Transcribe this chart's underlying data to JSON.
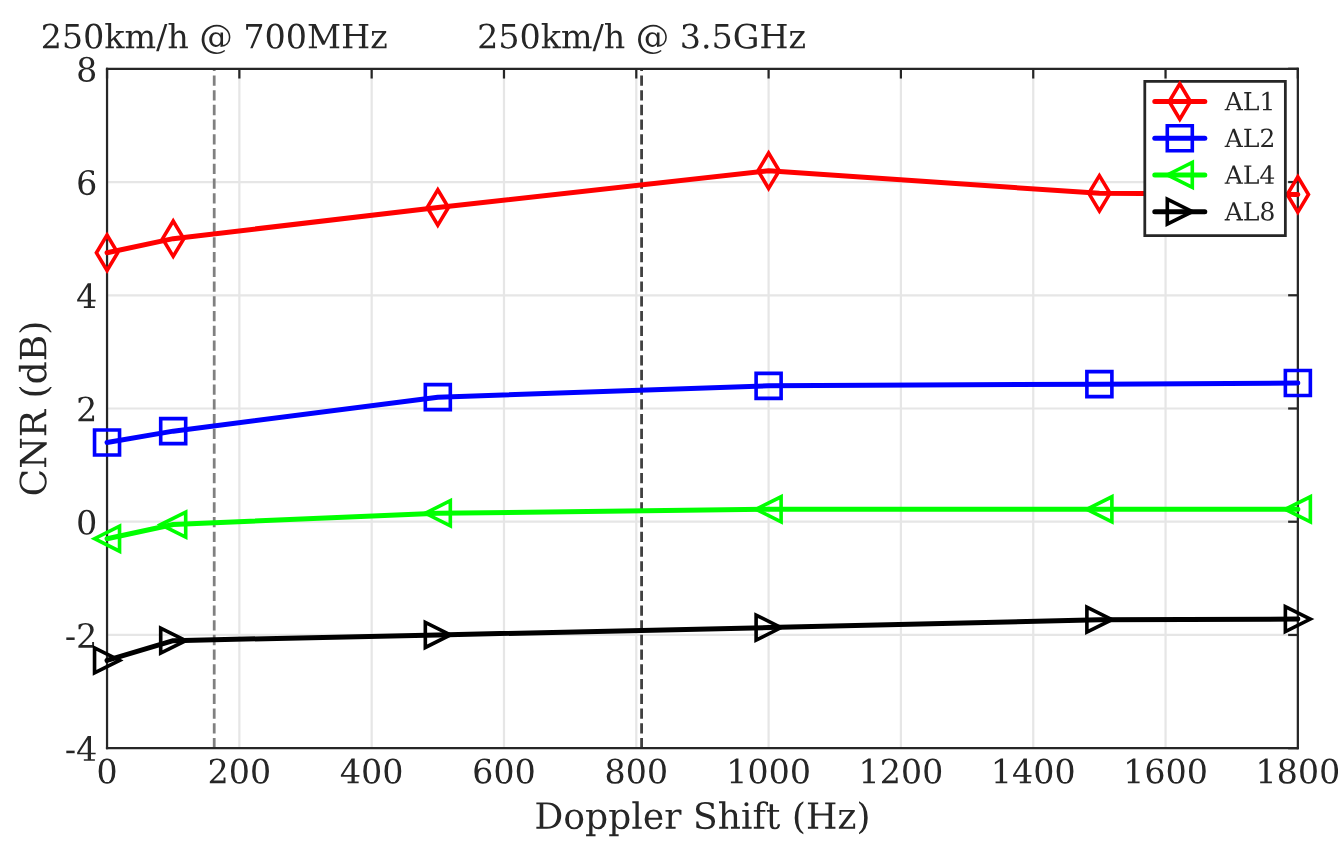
{
  "chart_data": {
    "type": "line",
    "xlabel": "Doppler Shift (Hz)",
    "ylabel": "CNR (dB)",
    "x": [
      0,
      100,
      500,
      1000,
      1500,
      1800
    ],
    "series": [
      {
        "name": "AL1",
        "color": "#ff0000",
        "marker": "diamond",
        "values": [
          4.75,
          5.0,
          5.55,
          6.2,
          5.8,
          5.78
        ]
      },
      {
        "name": "AL2",
        "color": "#0000ff",
        "marker": "square",
        "values": [
          1.4,
          1.6,
          2.2,
          2.4,
          2.43,
          2.45
        ]
      },
      {
        "name": "AL4",
        "color": "#00ff00",
        "marker": "triangle_left",
        "values": [
          -0.3,
          -0.05,
          0.15,
          0.22,
          0.22,
          0.22
        ]
      },
      {
        "name": "AL8",
        "color": "#000000",
        "marker": "triangle_right",
        "values": [
          -2.45,
          -2.1,
          -2.0,
          -1.87,
          -1.73,
          -1.72
        ]
      }
    ],
    "xlim": [
      0,
      1800
    ],
    "xticks": [
      0,
      200,
      400,
      600,
      800,
      1000,
      1200,
      1400,
      1600,
      1800
    ],
    "ylim": [
      -4,
      8
    ],
    "yticks": [
      -4,
      -2,
      0,
      2,
      4,
      6,
      8
    ],
    "ref_lines": [
      {
        "axis": "x",
        "value": 162,
        "label": "250km/h @ 700MHz",
        "color": "#808080",
        "line_style": "dashed"
      },
      {
        "axis": "x",
        "value": 808,
        "label": "250km/h @ 3.5GHz",
        "color": "#404040",
        "line_style": "dashed"
      }
    ],
    "grid": true,
    "legend": "top right"
  }
}
